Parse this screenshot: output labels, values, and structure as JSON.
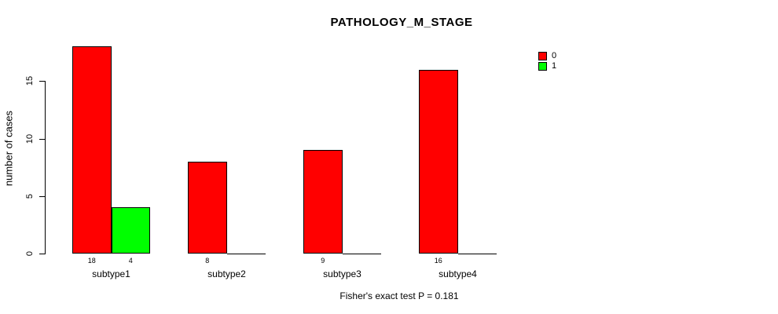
{
  "title": "PATHOLOGY_M_STAGE",
  "annotation": "Fisher's exact test P = 0.181",
  "chart_data": {
    "type": "bar",
    "title": "PATHOLOGY_M_STAGE",
    "categories": [
      "subtype1",
      "subtype2",
      "subtype3",
      "subtype4"
    ],
    "series": [
      {
        "name": "0",
        "color": "#ff0000",
        "values": [
          18,
          8,
          9,
          16
        ]
      },
      {
        "name": "1",
        "color": "#00ff00",
        "values": [
          4,
          0,
          0,
          0
        ]
      }
    ],
    "bar_value_labels": [
      [
        "18",
        "4"
      ],
      [
        "8",
        ""
      ],
      [
        "9",
        ""
      ],
      [
        "16",
        ""
      ]
    ],
    "xlabel": "",
    "ylabel": "number of cases",
    "yticks": [
      "0",
      "5",
      "10",
      "15"
    ],
    "ylim": [
      0,
      18
    ],
    "grid": false,
    "legend_position": "top-right",
    "annotation": "Fisher's exact test P = 0.181",
    "colors": {
      "series_0": "#ff0000",
      "series_1": "#00ff00",
      "axis": "#000000",
      "background": "#ffffff"
    }
  }
}
